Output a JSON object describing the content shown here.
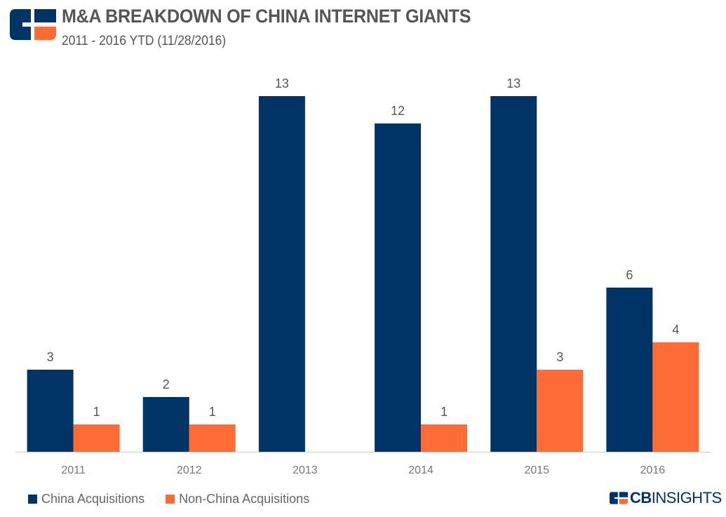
{
  "header": {
    "title": "M&A BREAKDOWN OF CHINA INTERNET GIANTS",
    "subtitle": "2011 - 2016 YTD (11/28/2016)"
  },
  "colors": {
    "china": "#003366",
    "non_china": "#ff6b35",
    "axis": "#cccccc",
    "label": "#555555",
    "tick": "#777777"
  },
  "chart_data": {
    "type": "bar",
    "title": "M&A BREAKDOWN OF CHINA INTERNET GIANTS",
    "subtitle": "2011 - 2016 YTD (11/28/2016)",
    "categories": [
      "2011",
      "2012",
      "2013",
      "2014",
      "2015",
      "2016"
    ],
    "series": [
      {
        "name": "China Acquisitions",
        "values": [
          3,
          2,
          13,
          12,
          13,
          6
        ]
      },
      {
        "name": "Non-China Acquisitions",
        "values": [
          1,
          1,
          0,
          1,
          3,
          4
        ]
      }
    ],
    "ylim": [
      0,
      13
    ],
    "grid": false,
    "xlabel": "",
    "ylabel": "",
    "legend_position": "bottom-left"
  },
  "legend": {
    "items": [
      {
        "label": "China Acquisitions",
        "color": "#003366"
      },
      {
        "label": "Non-China Acquisitions",
        "color": "#ff6b35"
      }
    ]
  },
  "brand": {
    "name_bold": "CB",
    "name_rest": "INSIGHTS",
    "logo_icon": "cb-insights-logo-icon"
  }
}
